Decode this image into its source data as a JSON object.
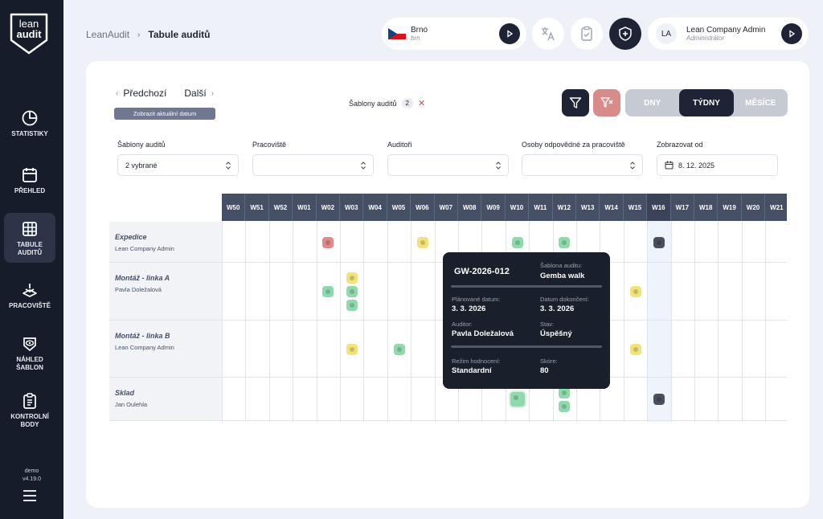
{
  "sidebar": {
    "logo_line1": "lean",
    "logo_line2": "audit",
    "items": [
      {
        "label": "STATISTIKY",
        "icon": "pie-chart-icon"
      },
      {
        "label": "PŘEHLED",
        "icon": "calendar-icon"
      },
      {
        "label_l1": "TABULE",
        "label_l2": "AUDITŮ",
        "icon": "grid-table-icon",
        "active": true
      },
      {
        "label": "PRACOVIŠTĚ",
        "icon": "workplace-icon"
      },
      {
        "label_l1": "NÁHLED",
        "label_l2": "ŠABLON",
        "icon": "eye-icon"
      },
      {
        "label_l1": "KONTROLNÍ",
        "label_l2": "BODY",
        "icon": "clipboard-icon"
      }
    ],
    "env": "demo",
    "version": "v4.19.0"
  },
  "header": {
    "breadcrumb_root": "LeanAudit",
    "breadcrumb_current": "Tabule auditů",
    "location_name": "Brno",
    "location_code": "brn",
    "user_initials": "LA",
    "user_name": "Lean Company Admin",
    "user_role": "Administrátor"
  },
  "toolbar": {
    "prev": "Předchozí",
    "next": "Další",
    "today": "Zobrazit aktuální datum",
    "template_filter_label": "Šablony auditů",
    "template_filter_count": "2",
    "view_days": "DNY",
    "view_weeks": "TÝDNY",
    "view_months": "MĚSÍCE"
  },
  "filters": {
    "templates_label": "Šablony auditů",
    "templates_value": "2 vybrané",
    "workplace_label": "Pracoviště",
    "auditors_label": "Auditoři",
    "responsible_label": "Osoby odpovědné za pracoviště",
    "show_from_label": "Zobrazovat od",
    "show_from_value": "8. 12. 2025"
  },
  "weeks": [
    "W50",
    "W51",
    "W52",
    "W01",
    "W02",
    "W03",
    "W04",
    "W05",
    "W06",
    "W07",
    "W08",
    "W09",
    "W10",
    "W11",
    "W12",
    "W13",
    "W14",
    "W15",
    "W16",
    "W17",
    "W18",
    "W19",
    "W20",
    "W21"
  ],
  "current_week": "W16",
  "rows": [
    {
      "title": "Expedice",
      "person": "Lean Company Admin"
    },
    {
      "title": "Montáž - linka A",
      "person": "Pavla Doležalová"
    },
    {
      "title": "Montáž - linka B",
      "person": "Lean Company Admin"
    },
    {
      "title": "Sklad",
      "person": "Jan Oulehla"
    }
  ],
  "audits": [
    {
      "row": 0,
      "week": "W02",
      "status": "red"
    },
    {
      "row": 0,
      "week": "W06",
      "status": "yellow"
    },
    {
      "row": 0,
      "week": "W10",
      "status": "green"
    },
    {
      "row": 0,
      "week": "W12",
      "status": "green"
    },
    {
      "row": 0,
      "week": "W16",
      "status": "dark"
    },
    {
      "row": 1,
      "week": "W02",
      "status": "green"
    },
    {
      "row": 1,
      "week": "W03",
      "status": "yellow"
    },
    {
      "row": 1,
      "week": "W03",
      "status": "green"
    },
    {
      "row": 1,
      "week": "W03",
      "status": "green"
    },
    {
      "row": 1,
      "week": "W15",
      "status": "yellow"
    },
    {
      "row": 2,
      "week": "W03",
      "status": "yellow"
    },
    {
      "row": 2,
      "week": "W05",
      "status": "green"
    },
    {
      "row": 2,
      "week": "W15",
      "status": "yellow"
    },
    {
      "row": 3,
      "week": "W10",
      "status": "green"
    },
    {
      "row": 3,
      "week": "W12",
      "status": "green"
    },
    {
      "row": 3,
      "week": "W12",
      "status": "green"
    },
    {
      "row": 3,
      "week": "W16",
      "status": "dark"
    }
  ],
  "tooltip": {
    "code": "GW-2026-012",
    "template_label": "Šablona auditu:",
    "template_value": "Gemba walk",
    "planned_label": "Plánované datum:",
    "planned_value": "3. 3. 2026",
    "completed_label": "Datum dokončení:",
    "completed_value": "3. 3. 2026",
    "auditor_label": "Auditor:",
    "auditor_value": "Pavla Doležalová",
    "state_label": "Stav:",
    "state_value": "Úspěšný",
    "mode_label": "Režim hodnocení:",
    "mode_value": "Standardní",
    "score_label": "Skóre:",
    "score_value": "80"
  },
  "colors": {
    "green": "#8fd9ad",
    "yellow": "#f1e37a",
    "red": "#e0888a",
    "dark": "#4a4f5c",
    "accent": "#1e2435"
  }
}
